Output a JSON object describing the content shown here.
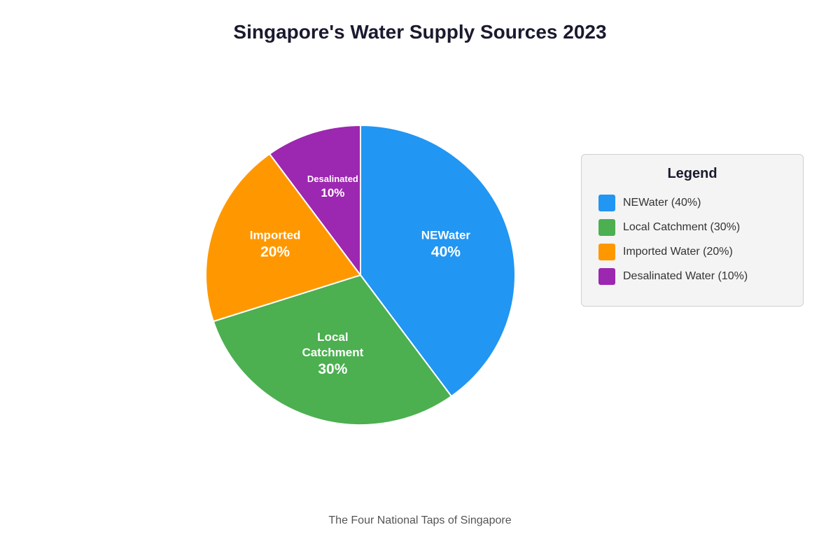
{
  "chart_data": {
    "type": "pie",
    "title": "Singapore's Water Supply Sources 2023",
    "caption": "The Four National Taps of Singapore",
    "slices": [
      {
        "name": "NEWater",
        "value": 40,
        "label_lines": [
          "NEWater"
        ],
        "pct_label": "40%",
        "legend_label": "NEWater (40%)",
        "color": "#2196F3"
      },
      {
        "name": "Local Catchment",
        "value": 30,
        "label_lines": [
          "Local",
          "Catchment"
        ],
        "pct_label": "30%",
        "legend_label": "Local Catchment (30%)",
        "color": "#4CAF50"
      },
      {
        "name": "Imported Water",
        "value": 20,
        "label_lines": [
          "Imported"
        ],
        "pct_label": "20%",
        "legend_label": "Imported Water (20%)",
        "color": "#FF9800"
      },
      {
        "name": "Desalinated Water",
        "value": 10,
        "label_lines": [
          "Desalinated"
        ],
        "pct_label": "10%",
        "legend_label": "Desalinated Water (10%)",
        "color": "#9C27B0"
      }
    ],
    "legend": {
      "title": "Legend",
      "placement": "right"
    }
  }
}
